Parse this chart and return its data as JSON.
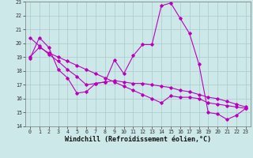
{
  "xlabel": "Windchill (Refroidissement éolien,°C)",
  "x_values": [
    0,
    1,
    2,
    3,
    4,
    5,
    6,
    7,
    8,
    9,
    10,
    11,
    12,
    13,
    14,
    15,
    16,
    17,
    18,
    19,
    20,
    21,
    22,
    23
  ],
  "main_line": [
    18.9,
    20.4,
    19.7,
    18.1,
    17.5,
    16.4,
    16.5,
    17.1,
    17.2,
    18.8,
    17.8,
    19.1,
    19.9,
    19.9,
    22.7,
    22.9,
    21.8,
    20.7,
    18.5,
    15.0,
    14.9,
    14.5,
    14.8,
    15.3
  ],
  "line2": [
    19.0,
    19.7,
    19.3,
    19.0,
    18.7,
    18.4,
    18.1,
    17.8,
    17.5,
    17.2,
    16.9,
    16.6,
    16.3,
    16.0,
    15.7,
    16.2,
    16.1,
    16.1,
    16.0,
    15.7,
    15.6,
    15.5,
    15.4,
    15.3
  ],
  "line3": [
    20.4,
    19.8,
    19.2,
    18.7,
    18.1,
    17.6,
    17.0,
    17.1,
    17.2,
    17.3,
    17.2,
    17.1,
    17.1,
    17.0,
    16.9,
    16.8,
    16.6,
    16.5,
    16.3,
    16.1,
    16.0,
    15.8,
    15.6,
    15.4
  ],
  "ylim": [
    14,
    23
  ],
  "xlim": [
    -0.5,
    23.5
  ],
  "yticks": [
    14,
    15,
    16,
    17,
    18,
    19,
    20,
    21,
    22,
    23
  ],
  "xticks": [
    0,
    1,
    2,
    3,
    4,
    5,
    6,
    7,
    8,
    9,
    10,
    11,
    12,
    13,
    14,
    15,
    16,
    17,
    18,
    19,
    20,
    21,
    22,
    23
  ],
  "line_color": "#bb00bb",
  "bg_color": "#cce8e8",
  "grid_color": "#aacccc",
  "tick_fontsize": 4.8,
  "xlabel_fontsize": 6.0
}
